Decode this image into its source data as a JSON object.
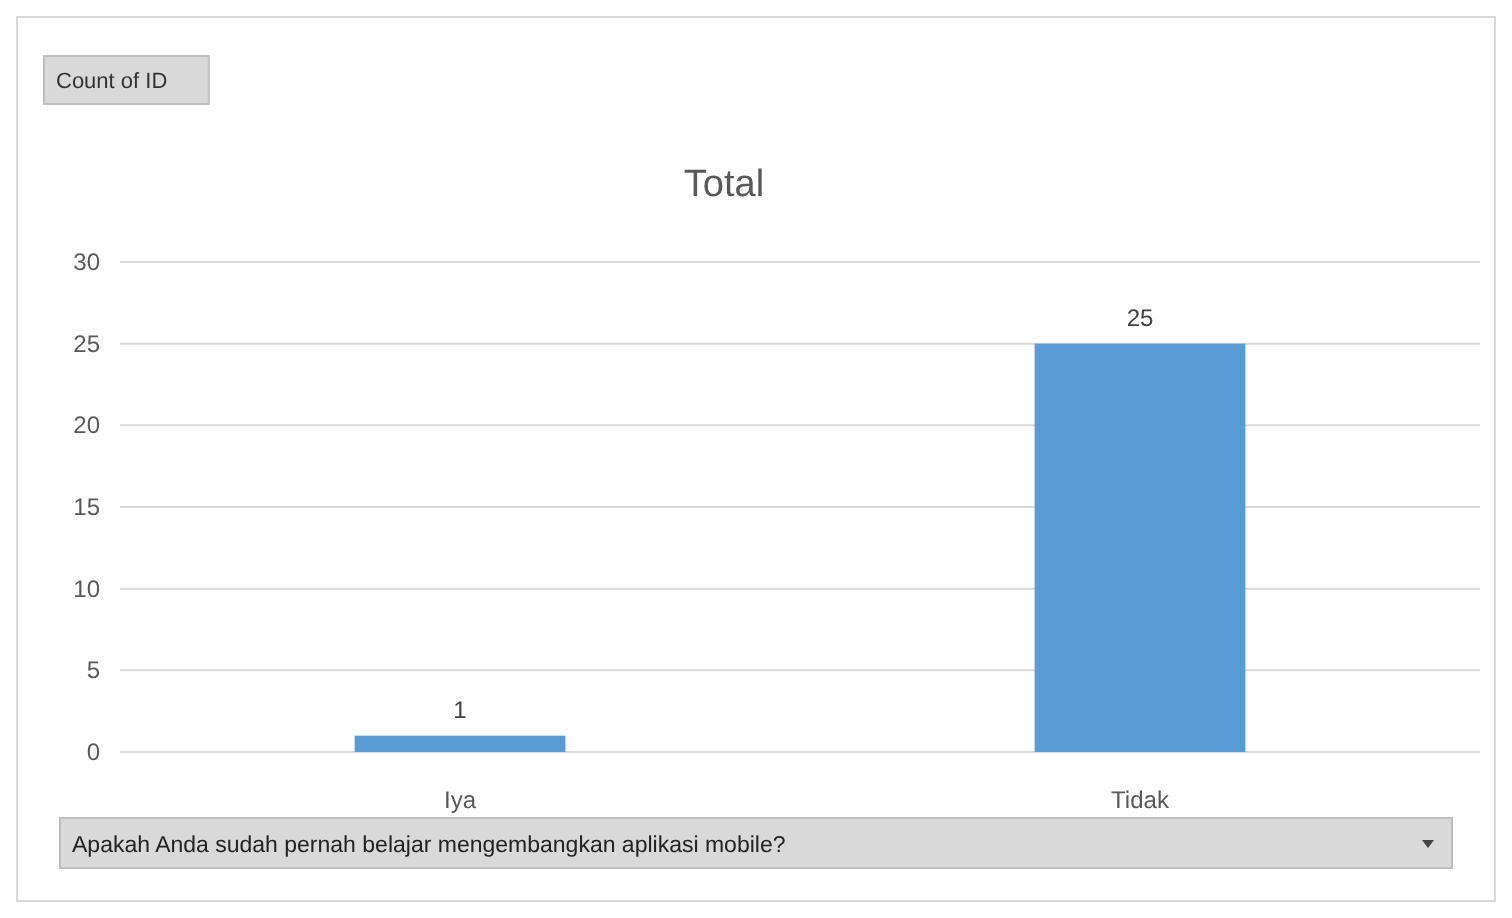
{
  "chart_data": {
    "type": "bar",
    "title": "Total",
    "xlabel": "Apakah Anda sudah pernah belajar mengembangkan aplikasi mobile?",
    "annotations": [
      "Count of ID"
    ],
    "categories": [
      "Iya",
      "Tidak"
    ],
    "values": [
      1,
      25
    ],
    "color": "#5b9bd5",
    "ylim": [
      0,
      30
    ],
    "yticks": [
      0,
      5,
      10,
      15,
      20,
      25,
      30
    ],
    "grid": "y",
    "data_labels": true
  }
}
